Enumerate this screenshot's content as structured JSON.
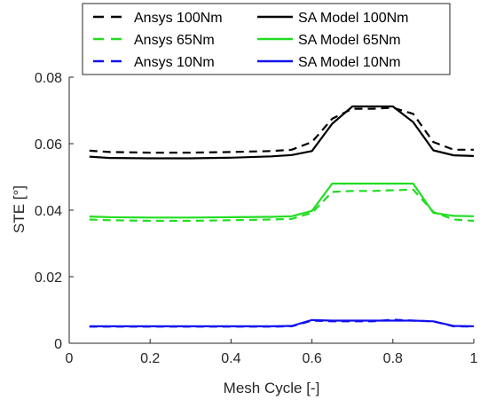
{
  "chart_data": {
    "type": "line",
    "title": "",
    "xlabel": "Mesh Cycle [-]",
    "ylabel": "STE [°]",
    "xlim": [
      0,
      1
    ],
    "ylim": [
      0,
      0.08
    ],
    "xticks": [
      "0",
      "0.2",
      "0.4",
      "0.6",
      "0.8",
      "1"
    ],
    "xtick_values": [
      0,
      0.2,
      0.4,
      0.6,
      0.8,
      1
    ],
    "yticks": [
      "0",
      "0.02",
      "0.04",
      "0.06",
      "0.08"
    ],
    "ytick_values": [
      0,
      0.02,
      0.04,
      0.06,
      0.08
    ],
    "grid": false,
    "legend_position": "top-center",
    "series": [
      {
        "name": "Ansys 100Nm",
        "color": "#000000",
        "dash": true,
        "x": [
          0.05,
          0.1,
          0.2,
          0.3,
          0.4,
          0.5,
          0.55,
          0.6,
          0.65,
          0.7,
          0.75,
          0.8,
          0.85,
          0.9,
          0.95,
          1.0
        ],
        "y": [
          0.0579,
          0.0575,
          0.0573,
          0.0573,
          0.0575,
          0.0578,
          0.0582,
          0.0605,
          0.0675,
          0.0705,
          0.0705,
          0.0708,
          0.069,
          0.0605,
          0.0582,
          0.0582
        ]
      },
      {
        "name": "SA Model 100Nm",
        "color": "#000000",
        "dash": false,
        "x": [
          0.05,
          0.1,
          0.2,
          0.3,
          0.4,
          0.5,
          0.55,
          0.6,
          0.65,
          0.7,
          0.75,
          0.8,
          0.85,
          0.9,
          0.95,
          1.0
        ],
        "y": [
          0.0561,
          0.0557,
          0.0556,
          0.0556,
          0.0558,
          0.0562,
          0.0566,
          0.0578,
          0.066,
          0.0712,
          0.0712,
          0.0712,
          0.0665,
          0.058,
          0.0565,
          0.0563
        ]
      },
      {
        "name": "Ansys 65Nm",
        "color": "#22dd22",
        "dash": true,
        "x": [
          0.05,
          0.1,
          0.2,
          0.3,
          0.4,
          0.5,
          0.55,
          0.6,
          0.65,
          0.7,
          0.75,
          0.8,
          0.85,
          0.9,
          0.95,
          1.0
        ],
        "y": [
          0.0372,
          0.037,
          0.0368,
          0.0368,
          0.037,
          0.0372,
          0.0374,
          0.0392,
          0.0455,
          0.0458,
          0.0458,
          0.046,
          0.0462,
          0.0395,
          0.0372,
          0.0368
        ]
      },
      {
        "name": "SA Model 65Nm",
        "color": "#22dd22",
        "dash": false,
        "x": [
          0.05,
          0.1,
          0.2,
          0.3,
          0.4,
          0.5,
          0.55,
          0.6,
          0.65,
          0.7,
          0.75,
          0.8,
          0.85,
          0.9,
          0.95,
          1.0
        ],
        "y": [
          0.0381,
          0.0379,
          0.0378,
          0.0378,
          0.0379,
          0.038,
          0.0382,
          0.0398,
          0.048,
          0.048,
          0.048,
          0.048,
          0.048,
          0.0392,
          0.0383,
          0.0382
        ]
      },
      {
        "name": "Ansys 10Nm",
        "color": "#1010ee",
        "dash": true,
        "x": [
          0.05,
          0.1,
          0.2,
          0.3,
          0.4,
          0.5,
          0.55,
          0.6,
          0.65,
          0.7,
          0.75,
          0.8,
          0.85,
          0.9,
          0.95,
          1.0
        ],
        "y": [
          0.005,
          0.005,
          0.005,
          0.005,
          0.005,
          0.005,
          0.0051,
          0.0068,
          0.0066,
          0.0066,
          0.0066,
          0.0071,
          0.0068,
          0.0066,
          0.0051,
          0.005
        ]
      },
      {
        "name": "SA Model 10Nm",
        "color": "#1010ee",
        "dash": false,
        "x": [
          0.05,
          0.1,
          0.2,
          0.3,
          0.4,
          0.5,
          0.55,
          0.6,
          0.65,
          0.7,
          0.75,
          0.8,
          0.85,
          0.9,
          0.95,
          1.0
        ],
        "y": [
          0.0051,
          0.0051,
          0.0051,
          0.0051,
          0.0051,
          0.0051,
          0.0052,
          0.007,
          0.0068,
          0.0068,
          0.0068,
          0.0068,
          0.0068,
          0.0066,
          0.0052,
          0.0051
        ]
      }
    ],
    "legend_order": [
      "Ansys 100Nm",
      "SA Model 100Nm",
      "Ansys 65Nm",
      "SA Model 65Nm",
      "Ansys 10Nm",
      "SA Model 10Nm"
    ]
  }
}
